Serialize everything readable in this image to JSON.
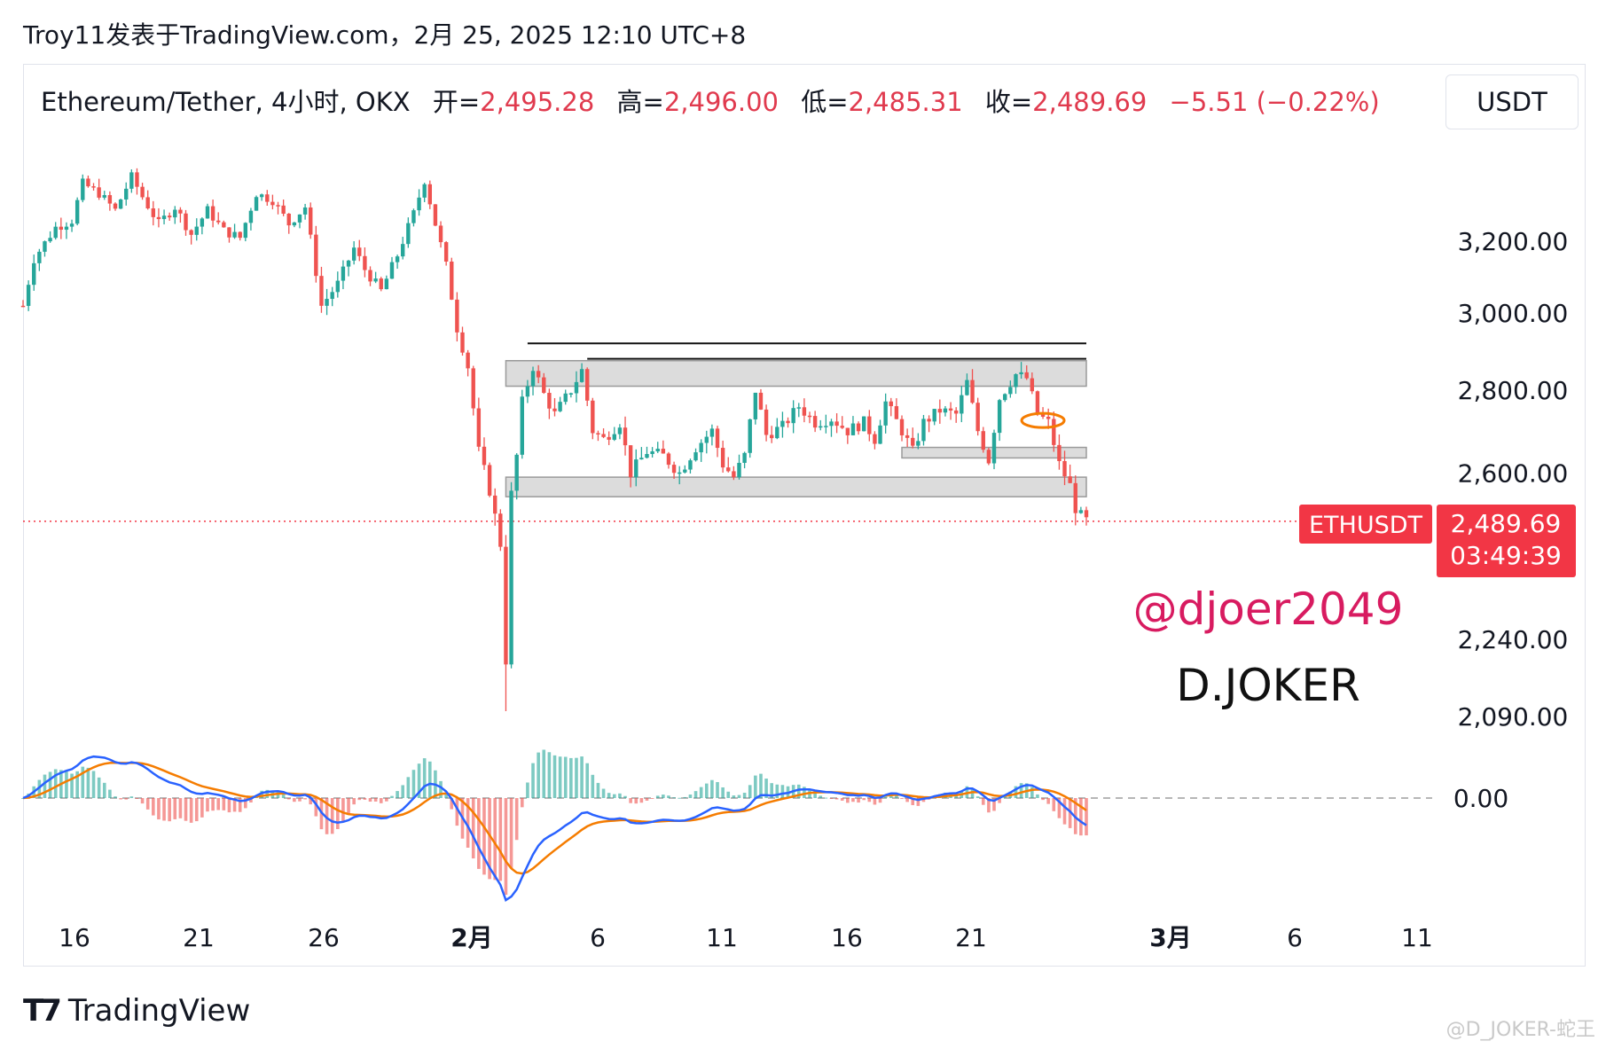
{
  "header": {
    "text": "Troy11发表于TradingView.com，2月 25, 2025 12:10 UTC+8"
  },
  "legend": {
    "symbol": "Ethereum/Tether, 4小时, OKX",
    "open_label": "开=",
    "open": "2,495.28",
    "high_label": "高=",
    "high": "2,496.00",
    "low_label": "低=",
    "low": "2,485.31",
    "close_label": "收=",
    "close": "2,489.69",
    "change": "−5.51 (−0.22%)"
  },
  "currency_button": "USDT",
  "chart_data": {
    "type": "candlestick",
    "symbol_tag": "ETHUSDT",
    "last_price": "2,489.69",
    "countdown": "03:49:39",
    "x_ticks": [
      {
        "label": "16",
        "bold": false
      },
      {
        "label": "21",
        "bold": false
      },
      {
        "label": "26",
        "bold": false
      },
      {
        "label": "2月",
        "bold": true
      },
      {
        "label": "6",
        "bold": false
      },
      {
        "label": "11",
        "bold": false
      },
      {
        "label": "16",
        "bold": false
      },
      {
        "label": "21",
        "bold": false
      },
      {
        "label": "3月",
        "bold": true
      },
      {
        "label": "6",
        "bold": false
      },
      {
        "label": "11",
        "bold": false
      }
    ],
    "y_ticks": [
      {
        "label": "3,200.00",
        "value": 3200
      },
      {
        "label": "3,000.00",
        "value": 3000
      },
      {
        "label": "2,800.00",
        "value": 2800
      },
      {
        "label": "2,600.00",
        "value": 2600
      },
      {
        "label": "2,240.00",
        "value": 2240
      },
      {
        "label": "2,090.00",
        "value": 2090
      }
    ],
    "y_scale": "log",
    "macd_zero_label": "0.00",
    "price_path": [
      [
        0,
        3020
      ],
      [
        2,
        3150
      ],
      [
        6,
        3240
      ],
      [
        9,
        3260
      ],
      [
        11,
        3370
      ],
      [
        14,
        3340
      ],
      [
        17,
        3290
      ],
      [
        20,
        3390
      ],
      [
        22,
        3330
      ],
      [
        25,
        3250
      ],
      [
        28,
        3300
      ],
      [
        31,
        3220
      ],
      [
        34,
        3290
      ],
      [
        37,
        3230
      ],
      [
        40,
        3210
      ],
      [
        43,
        3340
      ],
      [
        46,
        3320
      ],
      [
        49,
        3250
      ],
      [
        52,
        3300
      ],
      [
        55,
        3020
      ],
      [
        58,
        3080
      ],
      [
        61,
        3180
      ],
      [
        63,
        3120
      ],
      [
        66,
        3060
      ],
      [
        69,
        3160
      ],
      [
        72,
        3280
      ],
      [
        74,
        3380
      ],
      [
        76,
        3250
      ],
      [
        78,
        3130
      ],
      [
        80,
        2960
      ],
      [
        82,
        2860
      ],
      [
        84,
        2650
      ],
      [
        86,
        2560
      ],
      [
        88,
        2440
      ],
      [
        89,
        2200
      ],
      [
        90,
        2550
      ],
      [
        91,
        2640
      ],
      [
        92,
        2770
      ],
      [
        94,
        2860
      ],
      [
        96,
        2790
      ],
      [
        98,
        2740
      ],
      [
        101,
        2800
      ],
      [
        103,
        2850
      ],
      [
        105,
        2700
      ],
      [
        107,
        2680
      ],
      [
        110,
        2720
      ],
      [
        112,
        2600
      ],
      [
        115,
        2650
      ],
      [
        118,
        2640
      ],
      [
        121,
        2600
      ],
      [
        124,
        2660
      ],
      [
        127,
        2700
      ],
      [
        129,
        2620
      ],
      [
        131,
        2590
      ],
      [
        133,
        2640
      ],
      [
        135,
        2800
      ],
      [
        137,
        2690
      ],
      [
        140,
        2710
      ],
      [
        143,
        2760
      ],
      [
        146,
        2720
      ],
      [
        149,
        2730
      ],
      [
        152,
        2700
      ],
      [
        155,
        2720
      ],
      [
        157,
        2680
      ],
      [
        159,
        2770
      ],
      [
        162,
        2700
      ],
      [
        164,
        2650
      ],
      [
        166,
        2720
      ],
      [
        169,
        2750
      ],
      [
        172,
        2740
      ],
      [
        174,
        2820
      ],
      [
        176,
        2700
      ],
      [
        178,
        2630
      ],
      [
        180,
        2780
      ],
      [
        183,
        2840
      ],
      [
        185,
        2830
      ],
      [
        187,
        2740
      ],
      [
        189,
        2720
      ],
      [
        191,
        2620
      ],
      [
        193,
        2570
      ],
      [
        194,
        2520
      ],
      [
        195,
        2500
      ],
      [
        196,
        2490
      ]
    ],
    "zones": [
      {
        "x0": 89,
        "x1": 196,
        "y_top": 2875,
        "y_bottom": 2810
      },
      {
        "x0": 89,
        "x1": 196,
        "y_top": 2590,
        "y_bottom": 2545
      },
      {
        "x0": 162,
        "x1": 196,
        "y_top": 2660,
        "y_bottom": 2635
      }
    ],
    "resistance_lines": [
      {
        "x0": 93,
        "x1": 196,
        "value": 2920
      },
      {
        "x0": 104,
        "x1": 196,
        "value": 2880
      }
    ],
    "highlight_ellipse": {
      "x": 188,
      "value": 2725
    },
    "annotations": {
      "handle": "@djoer2049",
      "name": "D.JOKER"
    },
    "colors": {
      "up": "#26a69a",
      "down": "#ef5350",
      "macd": "#2962ff",
      "signal": "#f57c00",
      "tag": "#f23645",
      "handle": "#d81b60"
    }
  },
  "brand": {
    "name": "TradingView"
  },
  "watermark": "@D_JOKER-蛇王"
}
